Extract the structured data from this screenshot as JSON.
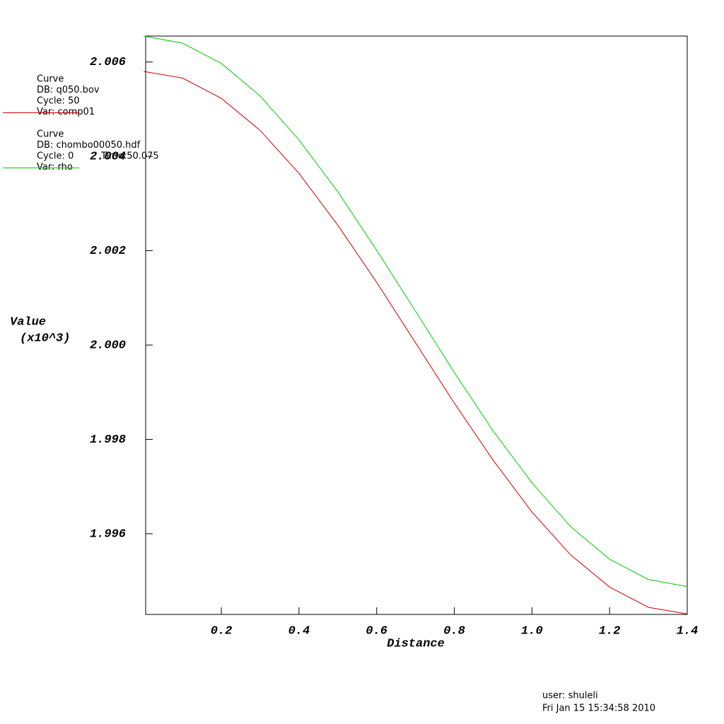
{
  "chart_data": {
    "type": "line",
    "x_label": "Distance",
    "y_label": "Value",
    "y_label_sub": "(x10^3)",
    "x": [
      0,
      0.1,
      0.2,
      0.3,
      0.4,
      0.5,
      0.6,
      0.7,
      0.8,
      0.9,
      1.0,
      1.1,
      1.2,
      1.3,
      1.4
    ],
    "series": [
      {
        "name": "comp01",
        "color": "#cc0000",
        "legend": [
          "Curve",
          "DB: q050.bov",
          "Cycle: 50",
          "Var: comp01"
        ],
        "values": [
          2.0058,
          2.00566,
          2.00523,
          2.00455,
          2.00364,
          2.00254,
          2.00133,
          2.00005,
          1.99877,
          1.99756,
          1.99646,
          1.99555,
          1.99487,
          1.99444,
          1.9943
        ]
      },
      {
        "name": "rho",
        "color": "#00cc00",
        "legend": [
          "Curve",
          "DB: chombo00050.hdf",
          "Cycle: 0",
          "Var: rho"
        ],
        "time": "Time:50.075",
        "values": [
          2.00655,
          2.0064,
          2.00597,
          2.00528,
          2.00435,
          2.00325,
          2.00201,
          2.00072,
          1.99942,
          1.99818,
          1.99708,
          1.99615,
          1.99546,
          1.99503,
          1.99488
        ]
      }
    ],
    "xlim": [
      0.005,
      1.4
    ],
    "ylim": [
      1.99429,
      2.00655
    ],
    "xticks": [
      0.2,
      0.4,
      0.6,
      0.8,
      {
        "value": 1.0,
        "label": "1.0"
      },
      1.2,
      1.4
    ],
    "yticks": [
      1.996,
      1.998,
      {
        "value": 2.0,
        "label": "2.000"
      },
      2.002,
      2.004,
      2.006
    ],
    "grid": false,
    "user": "user: shuleli",
    "date": "Fri Jan 15 15:34:58 2010"
  }
}
